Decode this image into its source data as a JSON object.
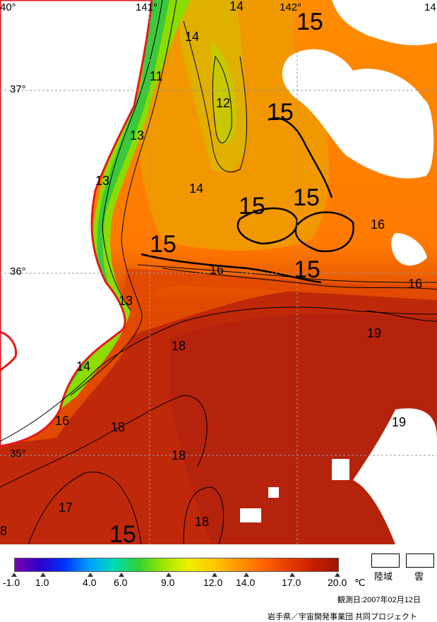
{
  "map": {
    "longitude_labels": [
      "40°",
      "141°",
      "142°",
      "14"
    ],
    "latitude_labels": [
      "37°",
      "36°",
      "35°"
    ],
    "isotherm_labels": [
      "14",
      "15",
      "14",
      "11",
      "12",
      "15",
      "13",
      "13",
      "14",
      "15",
      "15",
      "16",
      "15",
      "15",
      "16",
      "16",
      "13",
      "19",
      "18",
      "14",
      "16",
      "18",
      "19",
      "18",
      "17",
      "18",
      "15",
      "8"
    ],
    "colors": {
      "coast": "#e31a1c",
      "land": "#ffffff",
      "cloud": "#ffffff",
      "contour": "#000000"
    }
  },
  "legend": {
    "scale_labels": [
      "-1.0",
      "1.0",
      "4.0",
      "6.0",
      "9.0",
      "12.0",
      "14.0",
      "17.0",
      "20.0"
    ],
    "unit": "℃",
    "land_label": "陸域",
    "cloud_label": "雲",
    "colorbar_colors": [
      "#7b00b4",
      "#2d00c8",
      "#0032ff",
      "#00a0ff",
      "#00dcb4",
      "#32d232",
      "#a0e600",
      "#f0f000",
      "#ffc800",
      "#ff9600",
      "#ff6400",
      "#e63c00",
      "#c81e00",
      "#a01400"
    ]
  },
  "footer": {
    "observation_date": "観測日:2007年02月12日",
    "credit": "岩手県／宇宙開発事業団 共同プロジェクト"
  }
}
